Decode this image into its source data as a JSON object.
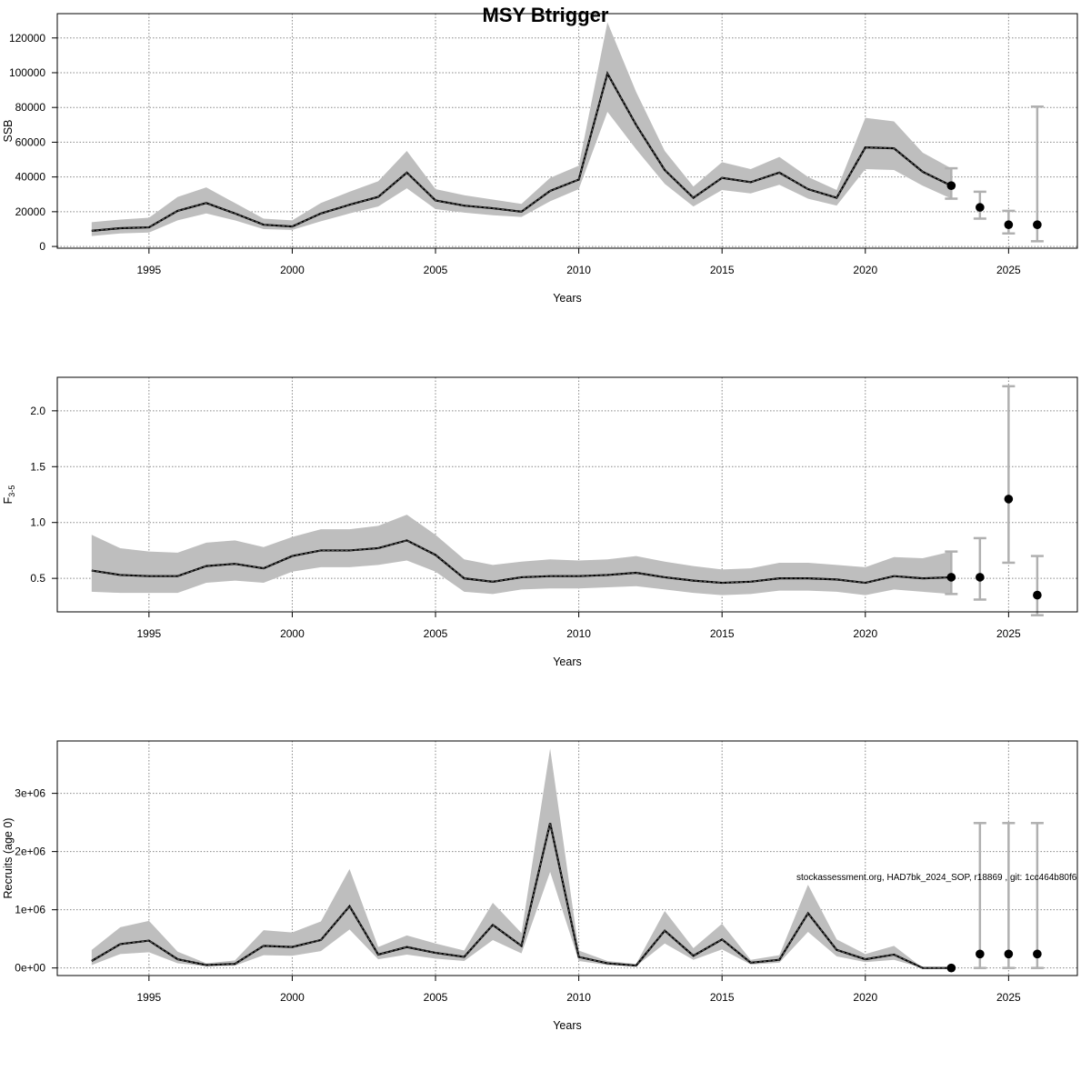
{
  "title": "MSY Btrigger",
  "footnote": "stockassessment.org, HAD7bk_2024_SOP, r18869 , git: 1cc464b80f6",
  "colors": {
    "band": "#bebebe",
    "line": "#000000",
    "errorbar": "#b0b0b0",
    "grid": "#888888"
  },
  "chart_data": [
    {
      "type": "line",
      "title": "MSY Btrigger",
      "xlabel": "Years",
      "ylabel": "SSB",
      "xlim": [
        1991.8,
        2027.4
      ],
      "ylim": [
        -1000,
        134000
      ],
      "xticks": [
        1995,
        2000,
        2005,
        2010,
        2015,
        2020,
        2025
      ],
      "yticks": [
        0,
        20000,
        40000,
        60000,
        80000,
        100000,
        120000
      ],
      "ytick_labels": [
        "0",
        "20000",
        "40000",
        "60000",
        "80000",
        "100000",
        "120000"
      ],
      "grid": true,
      "x": [
        1993,
        1994,
        1995,
        1996,
        1997,
        1998,
        1999,
        2000,
        2001,
        2002,
        2003,
        2004,
        2005,
        2006,
        2007,
        2008,
        2009,
        2010,
        2011,
        2012,
        2013,
        2014,
        2015,
        2016,
        2017,
        2018,
        2019,
        2020,
        2021,
        2022,
        2023
      ],
      "series": [
        {
          "estimate": [
            9000,
            10500,
            11000,
            20500,
            25000,
            19000,
            12500,
            11500,
            19000,
            24000,
            28500,
            42500,
            26500,
            23500,
            22000,
            20000,
            32000,
            38500,
            99500,
            70000,
            44000,
            28000,
            39500,
            37000,
            42500,
            33000,
            28000,
            57000,
            56500,
            43000,
            35000
          ],
          "upper": [
            14000,
            15500,
            16500,
            28500,
            34000,
            25000,
            16000,
            15000,
            25000,
            31500,
            37500,
            55000,
            33000,
            29500,
            27000,
            24500,
            39500,
            46500,
            129000,
            89000,
            55000,
            34500,
            48500,
            44500,
            51500,
            40000,
            32500,
            74000,
            72000,
            54000,
            45000
          ],
          "lower": [
            6000,
            7500,
            8000,
            15000,
            19000,
            15000,
            10000,
            9500,
            14500,
            19000,
            23000,
            33500,
            21500,
            19500,
            18000,
            17000,
            26000,
            33000,
            77500,
            56000,
            36000,
            23000,
            32500,
            30500,
            35500,
            27500,
            23500,
            44500,
            44000,
            35000,
            27500
          ]
        }
      ],
      "projection": {
        "x": [
          2023,
          2024,
          2025,
          2026
        ],
        "values": [
          35000,
          22500,
          12500,
          12500
        ],
        "upper": [
          45000,
          31500,
          20500,
          80500
        ],
        "lower": [
          27500,
          16000,
          7500,
          3000
        ]
      }
    },
    {
      "type": "line",
      "xlabel": "Years",
      "ylabel": "F",
      "ylabel_sub": "3-5",
      "xlim": [
        1991.8,
        2027.4
      ],
      "ylim": [
        0.2,
        2.3
      ],
      "xticks": [
        1995,
        2000,
        2005,
        2010,
        2015,
        2020,
        2025
      ],
      "yticks": [
        0.5,
        1.0,
        1.5,
        2.0
      ],
      "ytick_labels": [
        "0.5",
        "1.0",
        "1.5",
        "2.0"
      ],
      "grid": true,
      "x": [
        1993,
        1994,
        1995,
        1996,
        1997,
        1998,
        1999,
        2000,
        2001,
        2002,
        2003,
        2004,
        2005,
        2006,
        2007,
        2008,
        2009,
        2010,
        2011,
        2012,
        2013,
        2014,
        2015,
        2016,
        2017,
        2018,
        2019,
        2020,
        2021,
        2022,
        2023
      ],
      "series": [
        {
          "estimate": [
            0.57,
            0.53,
            0.52,
            0.52,
            0.61,
            0.63,
            0.59,
            0.7,
            0.75,
            0.75,
            0.77,
            0.84,
            0.71,
            0.5,
            0.47,
            0.51,
            0.52,
            0.52,
            0.53,
            0.55,
            0.51,
            0.48,
            0.46,
            0.47,
            0.5,
            0.5,
            0.49,
            0.46,
            0.52,
            0.5,
            0.51
          ],
          "upper": [
            0.89,
            0.77,
            0.74,
            0.73,
            0.82,
            0.84,
            0.78,
            0.87,
            0.94,
            0.94,
            0.97,
            1.07,
            0.89,
            0.67,
            0.62,
            0.65,
            0.67,
            0.66,
            0.67,
            0.7,
            0.65,
            0.61,
            0.58,
            0.59,
            0.64,
            0.64,
            0.62,
            0.6,
            0.69,
            0.68,
            0.74
          ],
          "lower": [
            0.38,
            0.37,
            0.37,
            0.37,
            0.46,
            0.48,
            0.46,
            0.56,
            0.6,
            0.6,
            0.62,
            0.66,
            0.56,
            0.38,
            0.36,
            0.4,
            0.41,
            0.41,
            0.42,
            0.43,
            0.4,
            0.37,
            0.35,
            0.36,
            0.39,
            0.39,
            0.38,
            0.35,
            0.4,
            0.38,
            0.36
          ]
        }
      ],
      "projection": {
        "x": [
          2023,
          2024,
          2025,
          2026
        ],
        "values": [
          0.51,
          0.51,
          1.21,
          0.35
        ],
        "upper": [
          0.74,
          0.86,
          2.22,
          0.7
        ],
        "lower": [
          0.36,
          0.31,
          0.64,
          0.17
        ]
      }
    },
    {
      "type": "line",
      "xlabel": "Years",
      "ylabel": "Recruits (age 0)",
      "xlim": [
        1991.8,
        2027.4
      ],
      "ylim": [
        -130000,
        3900000
      ],
      "xticks": [
        1995,
        2000,
        2005,
        2010,
        2015,
        2020,
        2025
      ],
      "yticks": [
        0,
        1000000,
        2000000,
        3000000
      ],
      "ytick_labels": [
        "0e+00",
        "1e+06",
        "2e+06",
        "3e+06"
      ],
      "grid": true,
      "x": [
        1993,
        1994,
        1995,
        1996,
        1997,
        1998,
        1999,
        2000,
        2001,
        2002,
        2003,
        2004,
        2005,
        2006,
        2007,
        2008,
        2009,
        2010,
        2011,
        2012,
        2013,
        2014,
        2015,
        2016,
        2017,
        2018,
        2019,
        2020,
        2021,
        2022,
        2023
      ],
      "series": [
        {
          "estimate": [
            120000,
            410000,
            470000,
            150000,
            50000,
            70000,
            380000,
            360000,
            480000,
            1060000,
            230000,
            360000,
            260000,
            190000,
            740000,
            380000,
            2490000,
            190000,
            80000,
            40000,
            640000,
            210000,
            490000,
            90000,
            140000,
            940000,
            310000,
            150000,
            230000,
            0,
            0
          ],
          "upper": [
            310000,
            700000,
            810000,
            280000,
            80000,
            130000,
            650000,
            610000,
            800000,
            1700000,
            360000,
            560000,
            420000,
            300000,
            1120000,
            600000,
            3770000,
            300000,
            120000,
            70000,
            980000,
            340000,
            760000,
            140000,
            220000,
            1430000,
            490000,
            240000,
            380000,
            0,
            0
          ],
          "lower": [
            50000,
            240000,
            270000,
            80000,
            30000,
            40000,
            220000,
            210000,
            290000,
            660000,
            150000,
            230000,
            160000,
            120000,
            480000,
            250000,
            1650000,
            120000,
            50000,
            30000,
            420000,
            140000,
            320000,
            60000,
            90000,
            620000,
            200000,
            100000,
            140000,
            0,
            0
          ]
        }
      ],
      "projection": {
        "x": [
          2024,
          2025,
          2026
        ],
        "values": [
          240000,
          240000,
          240000
        ],
        "upper": [
          2490000,
          2490000,
          2490000
        ],
        "lower": [
          0,
          0,
          0
        ]
      },
      "last_point": {
        "x": 2023,
        "value": 0
      }
    }
  ]
}
